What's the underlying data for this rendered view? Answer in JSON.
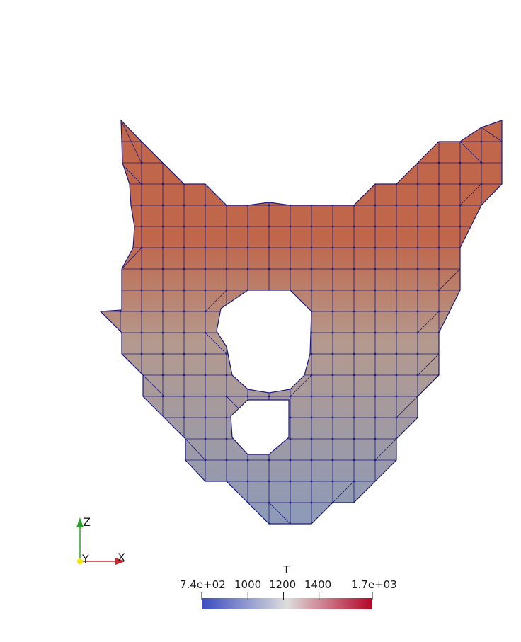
{
  "colorbar": {
    "title": "T",
    "tick_labels": [
      "7.4e+02",
      "1000",
      "1200",
      "1400",
      "1.7e+03"
    ],
    "range": [
      740,
      1700
    ],
    "colors": [
      "#3b4cc0",
      "#dddddd",
      "#b40426"
    ]
  },
  "axes": {
    "labels": {
      "x": "X",
      "y": "Y",
      "z": "Z"
    },
    "colors": {
      "x": "#d62728",
      "y": "#f2e600",
      "z": "#2ca02c"
    }
  },
  "mesh": {
    "edge_color": "#1a1a80",
    "fill_top": "#c0674b",
    "fill_mid": "#b49a8e",
    "fill_bottom": "#8c9ab8"
  }
}
